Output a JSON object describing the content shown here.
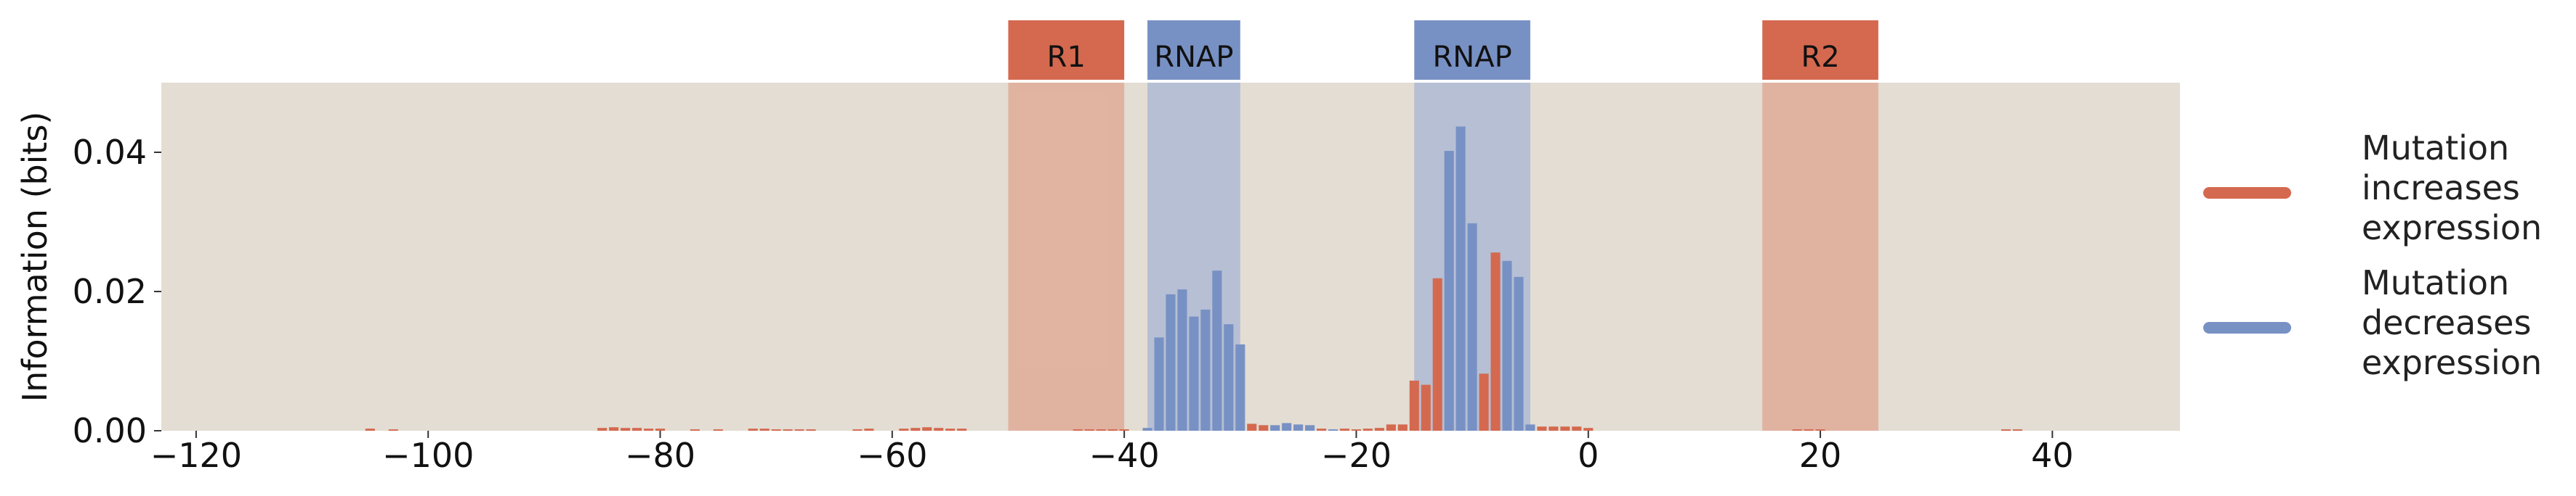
{
  "chart_data": {
    "type": "bar",
    "title": "",
    "xlabel": "",
    "ylabel": "Information (bits)",
    "xlim": [
      -123,
      51
    ],
    "ylim": [
      0,
      0.05
    ],
    "x_ticks": [
      -120,
      -100,
      -80,
      -60,
      -40,
      -20,
      0,
      20,
      40
    ],
    "x_tick_labels": [
      "−120",
      "−100",
      "−80",
      "−60",
      "−40",
      "−20",
      "0",
      "20",
      "40"
    ],
    "y_ticks": [
      0,
      0.02,
      0.04
    ],
    "y_tick_labels": [
      "0.00",
      "0.02",
      "0.04"
    ],
    "grid": false,
    "background_color": "#e3ddd3",
    "colors": {
      "increase": "#d4694f",
      "decrease": "#7891c4"
    },
    "regions": [
      {
        "label": "R1",
        "start": -50,
        "end": -40,
        "kind": "repressor"
      },
      {
        "label": "RNAP",
        "start": -38,
        "end": -30,
        "kind": "rnap"
      },
      {
        "label": "RNAP",
        "start": -15,
        "end": -5,
        "kind": "rnap"
      },
      {
        "label": "R2",
        "start": 15,
        "end": 25,
        "kind": "repressor"
      }
    ],
    "legend": {
      "position": "right",
      "entries": [
        {
          "label_lines": [
            "Mutation",
            "increases",
            "expression"
          ],
          "series": "increase"
        },
        {
          "label_lines": [
            "Mutation",
            "decreases",
            "expression"
          ],
          "series": "decrease"
        }
      ]
    },
    "series": [
      {
        "name": "Mutation increases expression",
        "key": "increase",
        "points": [
          [
            -105,
            0.0003
          ],
          [
            -103,
            0.0002
          ],
          [
            -85,
            0.0004
          ],
          [
            -84,
            0.0005
          ],
          [
            -83,
            0.0004
          ],
          [
            -82,
            0.0004
          ],
          [
            -81,
            0.0003
          ],
          [
            -80,
            0.0003
          ],
          [
            -77,
            0.0002
          ],
          [
            -75,
            0.0002
          ],
          [
            -72,
            0.0003
          ],
          [
            -71,
            0.0003
          ],
          [
            -70,
            0.0002
          ],
          [
            -69,
            0.0002
          ],
          [
            -68,
            0.0002
          ],
          [
            -67,
            0.0002
          ],
          [
            -63,
            0.0002
          ],
          [
            -62,
            0.0003
          ],
          [
            -59,
            0.0003
          ],
          [
            -58,
            0.0004
          ],
          [
            -57,
            0.0005
          ],
          [
            -56,
            0.0004
          ],
          [
            -55,
            0.0003
          ],
          [
            -54,
            0.0003
          ],
          [
            -44,
            0.0002
          ],
          [
            -43,
            0.0002
          ],
          [
            -42,
            0.0002
          ],
          [
            -41,
            0.0002
          ],
          [
            -40,
            0.0002
          ],
          [
            -29,
            0.001
          ],
          [
            -28,
            0.0008
          ],
          [
            -23,
            0.0003
          ],
          [
            -21,
            0.0003
          ],
          [
            -20,
            0.0002
          ],
          [
            -19,
            0.0003
          ],
          [
            -18,
            0.0004
          ],
          [
            -17,
            0.0009
          ],
          [
            -16,
            0.0009
          ],
          [
            -15,
            0.0072
          ],
          [
            -14,
            0.0066
          ],
          [
            -13,
            0.0219
          ],
          [
            -9,
            0.0082
          ],
          [
            -8,
            0.0256
          ],
          [
            -4,
            0.0006
          ],
          [
            -3,
            0.0006
          ],
          [
            -2,
            0.0006
          ],
          [
            -1,
            0.0006
          ],
          [
            0,
            0.0004
          ],
          [
            18,
            0.0002
          ],
          [
            19,
            0.0002
          ],
          [
            20,
            0.0002
          ],
          [
            36,
            0.0002
          ],
          [
            37,
            0.0002
          ]
        ]
      },
      {
        "name": "Mutation decreases expression",
        "key": "decrease",
        "points": [
          [
            -38,
            0.0004
          ],
          [
            -37,
            0.0134
          ],
          [
            -36,
            0.0196
          ],
          [
            -35,
            0.0203
          ],
          [
            -34,
            0.0164
          ],
          [
            -33,
            0.0174
          ],
          [
            -32,
            0.023
          ],
          [
            -31,
            0.0153
          ],
          [
            -30,
            0.0124
          ],
          [
            -27,
            0.0008
          ],
          [
            -26,
            0.0011
          ],
          [
            -25,
            0.0009
          ],
          [
            -24,
            0.0008
          ],
          [
            -22,
            0.0002
          ],
          [
            -12,
            0.0402
          ],
          [
            -11,
            0.0437
          ],
          [
            -10,
            0.0298
          ],
          [
            -7,
            0.0244
          ],
          [
            -6,
            0.0221
          ],
          [
            -5,
            0.0009
          ]
        ]
      }
    ]
  }
}
